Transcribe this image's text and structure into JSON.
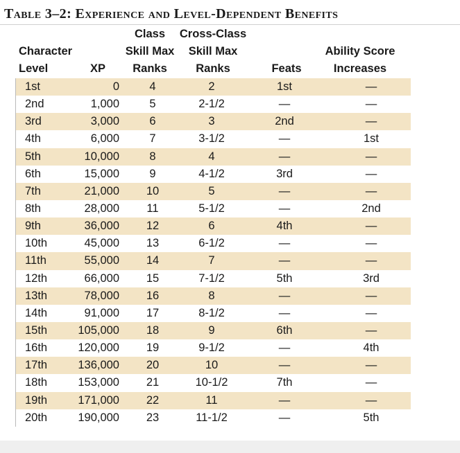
{
  "title": "Table 3–2: Experience and Level-Dependent Benefits",
  "headers": {
    "character": "Character",
    "level": "Level",
    "xp": "XP",
    "class_line1": "Class",
    "class_line2": "Skill Max",
    "class_line3": "Ranks",
    "cross_line1": "Cross-Class",
    "cross_line2": "Skill Max",
    "cross_line3": "Ranks",
    "feats": "Feats",
    "ability_line1": "Ability Score",
    "ability_line2": "Increases"
  },
  "rows": [
    {
      "level": "1st",
      "xp": "0",
      "class_ranks": "4",
      "cross_ranks": "2",
      "feats": "1st",
      "ability": "—"
    },
    {
      "level": "2nd",
      "xp": "1,000",
      "class_ranks": "5",
      "cross_ranks": "2-1/2",
      "feats": "—",
      "ability": "—"
    },
    {
      "level": "3rd",
      "xp": "3,000",
      "class_ranks": "6",
      "cross_ranks": "3",
      "feats": "2nd",
      "ability": "—"
    },
    {
      "level": "4th",
      "xp": "6,000",
      "class_ranks": "7",
      "cross_ranks": "3-1/2",
      "feats": "—",
      "ability": "1st"
    },
    {
      "level": "5th",
      "xp": "10,000",
      "class_ranks": "8",
      "cross_ranks": "4",
      "feats": "—",
      "ability": "—"
    },
    {
      "level": "6th",
      "xp": "15,000",
      "class_ranks": "9",
      "cross_ranks": "4-1/2",
      "feats": "3rd",
      "ability": "—"
    },
    {
      "level": "7th",
      "xp": "21,000",
      "class_ranks": "10",
      "cross_ranks": "5",
      "feats": "—",
      "ability": "—"
    },
    {
      "level": "8th",
      "xp": "28,000",
      "class_ranks": "11",
      "cross_ranks": "5-1/2",
      "feats": "—",
      "ability": "2nd"
    },
    {
      "level": "9th",
      "xp": "36,000",
      "class_ranks": "12",
      "cross_ranks": "6",
      "feats": "4th",
      "ability": "—"
    },
    {
      "level": "10th",
      "xp": "45,000",
      "class_ranks": "13",
      "cross_ranks": "6-1/2",
      "feats": "—",
      "ability": "—"
    },
    {
      "level": "11th",
      "xp": "55,000",
      "class_ranks": "14",
      "cross_ranks": "7",
      "feats": "—",
      "ability": "—"
    },
    {
      "level": "12th",
      "xp": "66,000",
      "class_ranks": "15",
      "cross_ranks": "7-1/2",
      "feats": "5th",
      "ability": "3rd"
    },
    {
      "level": "13th",
      "xp": "78,000",
      "class_ranks": "16",
      "cross_ranks": "8",
      "feats": "—",
      "ability": "—"
    },
    {
      "level": "14th",
      "xp": "91,000",
      "class_ranks": "17",
      "cross_ranks": "8-1/2",
      "feats": "—",
      "ability": "—"
    },
    {
      "level": "15th",
      "xp": "105,000",
      "class_ranks": "18",
      "cross_ranks": "9",
      "feats": "6th",
      "ability": "—"
    },
    {
      "level": "16th",
      "xp": "120,000",
      "class_ranks": "19",
      "cross_ranks": "9-1/2",
      "feats": "—",
      "ability": "4th"
    },
    {
      "level": "17th",
      "xp": "136,000",
      "class_ranks": "20",
      "cross_ranks": "10",
      "feats": "—",
      "ability": "—"
    },
    {
      "level": "18th",
      "xp": "153,000",
      "class_ranks": "21",
      "cross_ranks": "10-1/2",
      "feats": "7th",
      "ability": "—"
    },
    {
      "level": "19th",
      "xp": "171,000",
      "class_ranks": "22",
      "cross_ranks": "11",
      "feats": "—",
      "ability": "—"
    },
    {
      "level": "20th",
      "xp": "190,000",
      "class_ranks": "23",
      "cross_ranks": "11-1/2",
      "feats": "—",
      "ability": "5th"
    }
  ],
  "colors": {
    "row_shade": "#f3e4c5",
    "text": "#1a1a1a"
  }
}
